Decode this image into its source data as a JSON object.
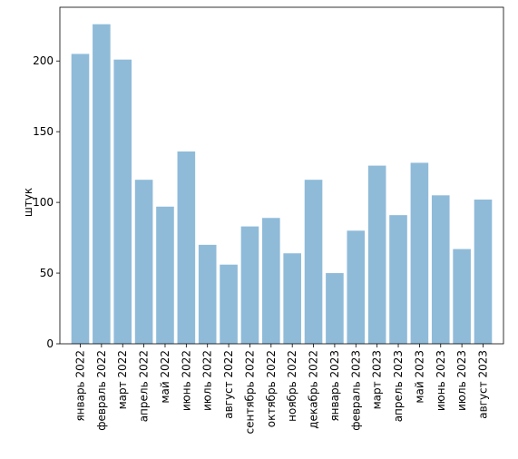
{
  "chart_data": {
    "type": "bar",
    "title": "",
    "xlabel": "",
    "ylabel": "штук",
    "ylim": [
      0,
      238
    ],
    "yticks": [
      0,
      50,
      100,
      150,
      200
    ],
    "grid": false,
    "bar_color": "#1f77b4",
    "bar_opacity": 0.5,
    "categories": [
      "январь 2022",
      "февраль 2022",
      "март 2022",
      "апрель 2022",
      "май 2022",
      "июнь 2022",
      "июль 2022",
      "август 2022",
      "сентябрь 2022",
      "октябрь 2022",
      "ноябрь 2022",
      "декабрь 2022",
      "январь 2023",
      "февраль 2023",
      "март 2023",
      "апрель 2023",
      "май 2023",
      "июнь 2023",
      "июль 2023",
      "август 2023"
    ],
    "values": [
      205,
      226,
      201,
      116,
      97,
      136,
      70,
      56,
      83,
      89,
      64,
      116,
      50,
      80,
      126,
      91,
      128,
      105,
      67,
      102
    ]
  }
}
